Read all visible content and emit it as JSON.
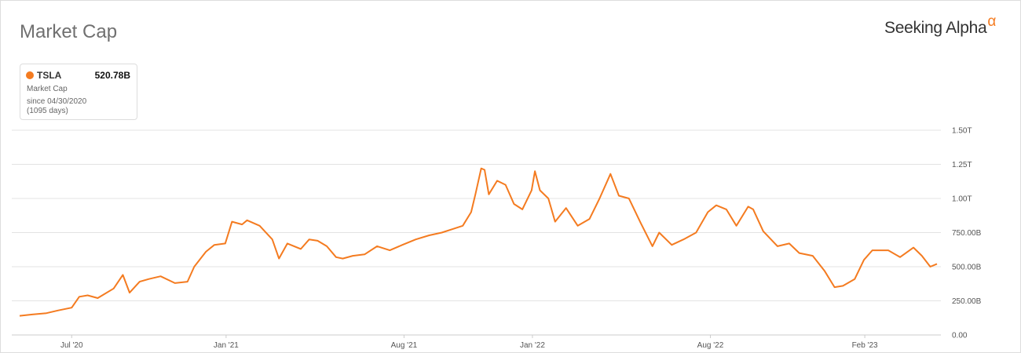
{
  "header": {
    "title": "Market Cap",
    "logo_text": "Seeking Alpha",
    "logo_symbol": "α"
  },
  "legend": {
    "ticker": "TSLA",
    "value": "520.78B",
    "metric": "Market Cap",
    "since": "since 04/30/2020",
    "days": "(1095 days)",
    "color": "#f47b20"
  },
  "chart_data": {
    "type": "line",
    "title": "Market Cap",
    "xlabel": "",
    "ylabel": "",
    "y_unit": "billions USD",
    "ylim": [
      0,
      1500
    ],
    "xlim": [
      "2020-04-30",
      "2023-04-28"
    ],
    "grid": true,
    "y_axis_side": "right",
    "y_ticks": [
      {
        "value": 0,
        "label": "0.00"
      },
      {
        "value": 250,
        "label": "250.00B"
      },
      {
        "value": 500,
        "label": "500.00B"
      },
      {
        "value": 750,
        "label": "750.00B"
      },
      {
        "value": 1000,
        "label": "1.00T"
      },
      {
        "value": 1250,
        "label": "1.25T"
      },
      {
        "value": 1500,
        "label": "1.50T"
      }
    ],
    "x_ticks": [
      {
        "date": "2020-07-01",
        "label": "Jul '20"
      },
      {
        "date": "2021-01-01",
        "label": "Jan '21"
      },
      {
        "date": "2021-08-01",
        "label": "Aug '21"
      },
      {
        "date": "2022-01-01",
        "label": "Jan '22"
      },
      {
        "date": "2022-08-01",
        "label": "Aug '22"
      },
      {
        "date": "2023-02-01",
        "label": "Feb '23"
      }
    ],
    "series": [
      {
        "name": "TSLA",
        "color": "#f47b20",
        "points": [
          [
            "2020-04-30",
            140
          ],
          [
            "2020-05-15",
            150
          ],
          [
            "2020-06-01",
            160
          ],
          [
            "2020-06-15",
            180
          ],
          [
            "2020-07-01",
            200
          ],
          [
            "2020-07-10",
            280
          ],
          [
            "2020-07-20",
            290
          ],
          [
            "2020-08-01",
            270
          ],
          [
            "2020-08-20",
            340
          ],
          [
            "2020-08-31",
            440
          ],
          [
            "2020-09-08",
            310
          ],
          [
            "2020-09-20",
            390
          ],
          [
            "2020-10-01",
            410
          ],
          [
            "2020-10-15",
            430
          ],
          [
            "2020-11-01",
            380
          ],
          [
            "2020-11-16",
            390
          ],
          [
            "2020-11-24",
            500
          ],
          [
            "2020-12-08",
            610
          ],
          [
            "2020-12-18",
            660
          ],
          [
            "2020-12-31",
            670
          ],
          [
            "2021-01-08",
            830
          ],
          [
            "2021-01-20",
            810
          ],
          [
            "2021-01-26",
            840
          ],
          [
            "2021-02-10",
            800
          ],
          [
            "2021-02-25",
            700
          ],
          [
            "2021-03-05",
            560
          ],
          [
            "2021-03-15",
            670
          ],
          [
            "2021-03-31",
            630
          ],
          [
            "2021-04-10",
            700
          ],
          [
            "2021-04-20",
            690
          ],
          [
            "2021-05-01",
            650
          ],
          [
            "2021-05-12",
            570
          ],
          [
            "2021-05-20",
            560
          ],
          [
            "2021-06-01",
            580
          ],
          [
            "2021-06-15",
            590
          ],
          [
            "2021-06-30",
            650
          ],
          [
            "2021-07-15",
            620
          ],
          [
            "2021-07-30",
            660
          ],
          [
            "2021-08-15",
            700
          ],
          [
            "2021-08-31",
            730
          ],
          [
            "2021-09-15",
            750
          ],
          [
            "2021-09-30",
            780
          ],
          [
            "2021-10-10",
            800
          ],
          [
            "2021-10-20",
            900
          ],
          [
            "2021-10-25",
            1030
          ],
          [
            "2021-11-01",
            1220
          ],
          [
            "2021-11-05",
            1210
          ],
          [
            "2021-11-10",
            1030
          ],
          [
            "2021-11-20",
            1130
          ],
          [
            "2021-11-30",
            1100
          ],
          [
            "2021-12-10",
            960
          ],
          [
            "2021-12-20",
            920
          ],
          [
            "2021-12-31",
            1060
          ],
          [
            "2022-01-04",
            1200
          ],
          [
            "2022-01-10",
            1060
          ],
          [
            "2022-01-20",
            1000
          ],
          [
            "2022-01-28",
            830
          ],
          [
            "2022-02-10",
            930
          ],
          [
            "2022-02-24",
            800
          ],
          [
            "2022-03-10",
            850
          ],
          [
            "2022-03-22",
            1000
          ],
          [
            "2022-04-04",
            1180
          ],
          [
            "2022-04-14",
            1020
          ],
          [
            "2022-04-26",
            1000
          ],
          [
            "2022-05-10",
            820
          ],
          [
            "2022-05-24",
            650
          ],
          [
            "2022-06-01",
            750
          ],
          [
            "2022-06-16",
            660
          ],
          [
            "2022-06-30",
            700
          ],
          [
            "2022-07-15",
            750
          ],
          [
            "2022-07-29",
            900
          ],
          [
            "2022-08-08",
            950
          ],
          [
            "2022-08-20",
            920
          ],
          [
            "2022-09-01",
            800
          ],
          [
            "2022-09-15",
            940
          ],
          [
            "2022-09-21",
            920
          ],
          [
            "2022-10-03",
            760
          ],
          [
            "2022-10-20",
            650
          ],
          [
            "2022-11-03",
            670
          ],
          [
            "2022-11-15",
            600
          ],
          [
            "2022-12-01",
            580
          ],
          [
            "2022-12-15",
            470
          ],
          [
            "2022-12-27",
            350
          ],
          [
            "2023-01-06",
            360
          ],
          [
            "2023-01-20",
            410
          ],
          [
            "2023-01-31",
            550
          ],
          [
            "2023-02-10",
            620
          ],
          [
            "2023-02-20",
            620
          ],
          [
            "2023-03-01",
            620
          ],
          [
            "2023-03-15",
            570
          ],
          [
            "2023-03-31",
            640
          ],
          [
            "2023-04-10",
            580
          ],
          [
            "2023-04-20",
            500
          ],
          [
            "2023-04-28",
            520.78
          ]
        ]
      }
    ]
  }
}
